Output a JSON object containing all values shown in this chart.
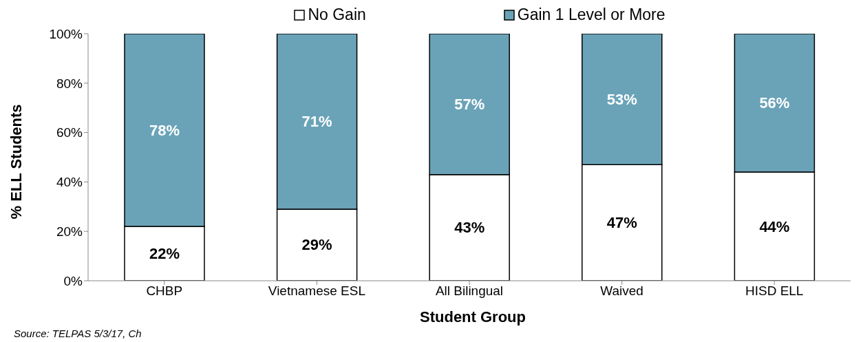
{
  "chart_data": {
    "type": "bar",
    "stacked": true,
    "xlabel": "Student Group",
    "ylabel": "% ELL Students",
    "categories": [
      "CHBP",
      "Vietnamese ESL",
      "All Bilingual",
      "Waived",
      "HISD ELL"
    ],
    "series": [
      {
        "name": "No Gain",
        "color": "#ffffff",
        "values": [
          22,
          29,
          43,
          47,
          44
        ],
        "value_labels": [
          "22%",
          "29%",
          "43%",
          "47%",
          "44%"
        ]
      },
      {
        "name": "Gain 1 Level or More",
        "color": "#6aa3b8",
        "values": [
          78,
          71,
          57,
          53,
          56
        ],
        "value_labels": [
          "78%",
          "71%",
          "57%",
          "53%",
          "56%"
        ]
      }
    ],
    "ylim": [
      0,
      100
    ],
    "yticks": [
      {
        "value": 0,
        "label": "0%"
      },
      {
        "value": 20,
        "label": "20%"
      },
      {
        "value": 40,
        "label": "40%"
      },
      {
        "value": 60,
        "label": "60%"
      },
      {
        "value": 80,
        "label": "80%"
      },
      {
        "value": 100,
        "label": "100%"
      }
    ],
    "grid": false,
    "legend": "top",
    "annotations": [
      "Source: TELPAS 5/3/17, Ch"
    ]
  }
}
